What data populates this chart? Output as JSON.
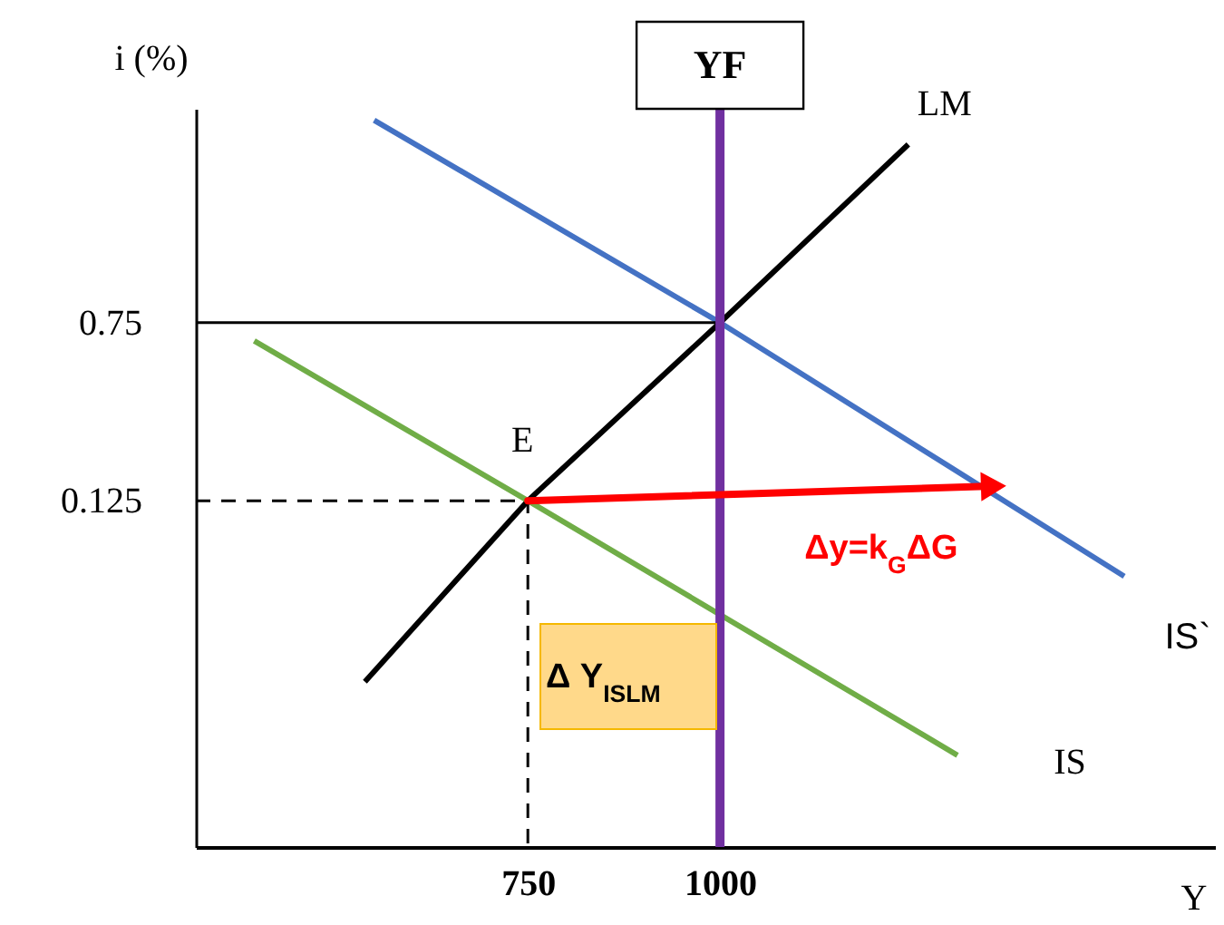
{
  "chart_data": {
    "type": "line",
    "xlabel": "Y",
    "ylabel": "i (%)",
    "xlim": [
      318,
      1644
    ],
    "ylim": [
      -1.09,
      1.5
    ],
    "xticks": [
      750,
      1000
    ],
    "yticks": [
      0.125,
      0.75
    ],
    "series": [
      {
        "name": "LM",
        "color": "#000000",
        "x": [
          538,
          750,
          1000,
          1245
        ],
        "values": [
          -0.51,
          0.125,
          0.75,
          1.375
        ]
      },
      {
        "name": "IS",
        "color": "#70ad47",
        "x": [
          394,
          750,
          1309
        ],
        "values": [
          0.686,
          0.125,
          -0.768
        ]
      },
      {
        "name": "IS`",
        "color": "#4472c4",
        "x": [
          550,
          1000,
          1526
        ],
        "values": [
          1.46,
          0.75,
          -0.14
        ]
      },
      {
        "color": "#000000",
        "line_style": "dashed",
        "x": [
          318,
          750,
          750
        ],
        "values": [
          0.125,
          0.125,
          -1.09
        ]
      },
      {
        "color": "#000000",
        "line_style": "solid",
        "x": [
          318,
          1000
        ],
        "values": [
          0.75,
          0.75
        ]
      }
    ],
    "ref_lines": [
      {
        "axis": "x",
        "value": 1000,
        "label": "YF",
        "color": "#7030a0"
      }
    ],
    "annotations": [
      {
        "text": "E",
        "x": 750,
        "y": 0.125
      },
      {
        "text": "Δy=k$_{G}$ΔG",
        "x": 1356,
        "y": 0.176
      },
      "Δ Y$_{ISLM}$"
    ]
  }
}
